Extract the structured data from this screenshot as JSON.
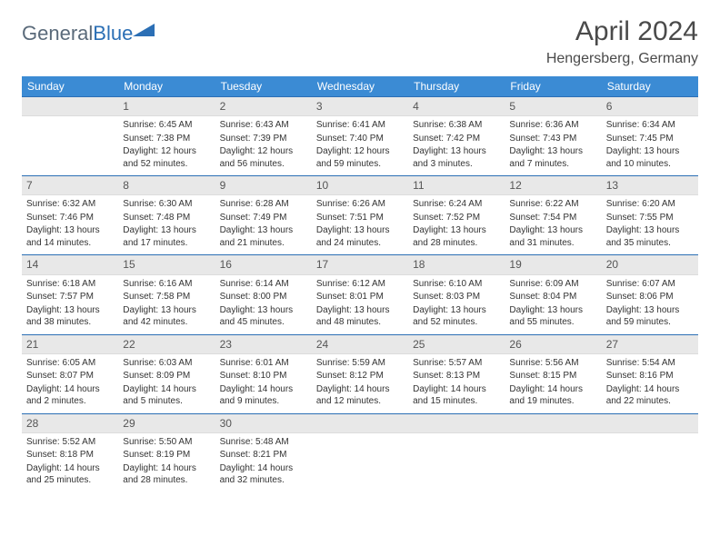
{
  "brand": {
    "part1": "General",
    "part2": "Blue"
  },
  "title": "April 2024",
  "location": "Hengersberg, Germany",
  "colors": {
    "header_bg": "#3b8bd4",
    "header_text": "#ffffff",
    "row_border": "#2b6fb5",
    "daynum_bg": "#e8e8e8",
    "body_text": "#333333",
    "logo_gray": "#5a6a7a",
    "logo_blue": "#2b6fb5"
  },
  "weekdays": [
    "Sunday",
    "Monday",
    "Tuesday",
    "Wednesday",
    "Thursday",
    "Friday",
    "Saturday"
  ],
  "weeks": [
    [
      null,
      {
        "n": "1",
        "sr": "6:45 AM",
        "ss": "7:38 PM",
        "dl": "12 hours and 52 minutes."
      },
      {
        "n": "2",
        "sr": "6:43 AM",
        "ss": "7:39 PM",
        "dl": "12 hours and 56 minutes."
      },
      {
        "n": "3",
        "sr": "6:41 AM",
        "ss": "7:40 PM",
        "dl": "12 hours and 59 minutes."
      },
      {
        "n": "4",
        "sr": "6:38 AM",
        "ss": "7:42 PM",
        "dl": "13 hours and 3 minutes."
      },
      {
        "n": "5",
        "sr": "6:36 AM",
        "ss": "7:43 PM",
        "dl": "13 hours and 7 minutes."
      },
      {
        "n": "6",
        "sr": "6:34 AM",
        "ss": "7:45 PM",
        "dl": "13 hours and 10 minutes."
      }
    ],
    [
      {
        "n": "7",
        "sr": "6:32 AM",
        "ss": "7:46 PM",
        "dl": "13 hours and 14 minutes."
      },
      {
        "n": "8",
        "sr": "6:30 AM",
        "ss": "7:48 PM",
        "dl": "13 hours and 17 minutes."
      },
      {
        "n": "9",
        "sr": "6:28 AM",
        "ss": "7:49 PM",
        "dl": "13 hours and 21 minutes."
      },
      {
        "n": "10",
        "sr": "6:26 AM",
        "ss": "7:51 PM",
        "dl": "13 hours and 24 minutes."
      },
      {
        "n": "11",
        "sr": "6:24 AM",
        "ss": "7:52 PM",
        "dl": "13 hours and 28 minutes."
      },
      {
        "n": "12",
        "sr": "6:22 AM",
        "ss": "7:54 PM",
        "dl": "13 hours and 31 minutes."
      },
      {
        "n": "13",
        "sr": "6:20 AM",
        "ss": "7:55 PM",
        "dl": "13 hours and 35 minutes."
      }
    ],
    [
      {
        "n": "14",
        "sr": "6:18 AM",
        "ss": "7:57 PM",
        "dl": "13 hours and 38 minutes."
      },
      {
        "n": "15",
        "sr": "6:16 AM",
        "ss": "7:58 PM",
        "dl": "13 hours and 42 minutes."
      },
      {
        "n": "16",
        "sr": "6:14 AM",
        "ss": "8:00 PM",
        "dl": "13 hours and 45 minutes."
      },
      {
        "n": "17",
        "sr": "6:12 AM",
        "ss": "8:01 PM",
        "dl": "13 hours and 48 minutes."
      },
      {
        "n": "18",
        "sr": "6:10 AM",
        "ss": "8:03 PM",
        "dl": "13 hours and 52 minutes."
      },
      {
        "n": "19",
        "sr": "6:09 AM",
        "ss": "8:04 PM",
        "dl": "13 hours and 55 minutes."
      },
      {
        "n": "20",
        "sr": "6:07 AM",
        "ss": "8:06 PM",
        "dl": "13 hours and 59 minutes."
      }
    ],
    [
      {
        "n": "21",
        "sr": "6:05 AM",
        "ss": "8:07 PM",
        "dl": "14 hours and 2 minutes."
      },
      {
        "n": "22",
        "sr": "6:03 AM",
        "ss": "8:09 PM",
        "dl": "14 hours and 5 minutes."
      },
      {
        "n": "23",
        "sr": "6:01 AM",
        "ss": "8:10 PM",
        "dl": "14 hours and 9 minutes."
      },
      {
        "n": "24",
        "sr": "5:59 AM",
        "ss": "8:12 PM",
        "dl": "14 hours and 12 minutes."
      },
      {
        "n": "25",
        "sr": "5:57 AM",
        "ss": "8:13 PM",
        "dl": "14 hours and 15 minutes."
      },
      {
        "n": "26",
        "sr": "5:56 AM",
        "ss": "8:15 PM",
        "dl": "14 hours and 19 minutes."
      },
      {
        "n": "27",
        "sr": "5:54 AM",
        "ss": "8:16 PM",
        "dl": "14 hours and 22 minutes."
      }
    ],
    [
      {
        "n": "28",
        "sr": "5:52 AM",
        "ss": "8:18 PM",
        "dl": "14 hours and 25 minutes."
      },
      {
        "n": "29",
        "sr": "5:50 AM",
        "ss": "8:19 PM",
        "dl": "14 hours and 28 minutes."
      },
      {
        "n": "30",
        "sr": "5:48 AM",
        "ss": "8:21 PM",
        "dl": "14 hours and 32 minutes."
      },
      null,
      null,
      null,
      null
    ]
  ],
  "labels": {
    "sunrise": "Sunrise:",
    "sunset": "Sunset:",
    "daylight": "Daylight:"
  }
}
